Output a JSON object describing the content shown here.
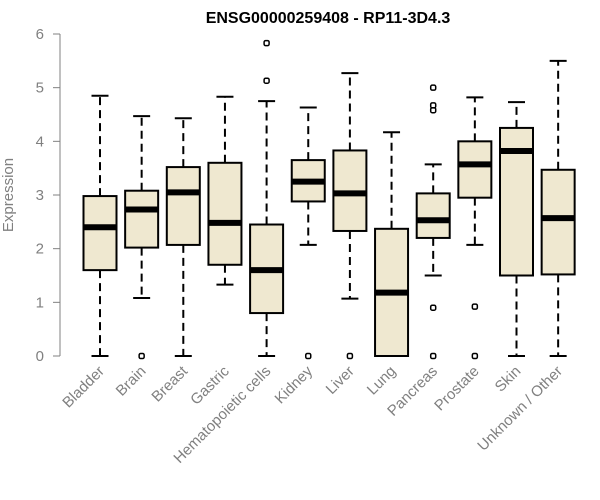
{
  "chart_data": {
    "type": "boxplot",
    "title": "ENSG00000259408 - RP11-3D4.3",
    "xlabel": "",
    "ylabel": "Expression",
    "ylim": [
      0,
      6
    ],
    "yticks": [
      0,
      1,
      2,
      3,
      4,
      5,
      6
    ],
    "box_fill": "#efe8d0",
    "categories": [
      "Bladder",
      "Brain",
      "Breast",
      "Gastric",
      "Hematopoietic cells",
      "Kidney",
      "Liver",
      "Lung",
      "Pancreas",
      "Prostate",
      "Skin",
      "Unknown / Other"
    ],
    "boxes": [
      {
        "label": "Bladder",
        "min": 0.0,
        "q1": 1.6,
        "median": 2.4,
        "q3": 2.98,
        "max": 4.85,
        "outliers": []
      },
      {
        "label": "Brain",
        "min": 1.08,
        "q1": 2.02,
        "median": 2.73,
        "q3": 3.08,
        "max": 4.47,
        "outliers": [
          0.0
        ]
      },
      {
        "label": "Breast",
        "min": 0.0,
        "q1": 2.07,
        "median": 3.05,
        "q3": 3.52,
        "max": 4.43,
        "outliers": []
      },
      {
        "label": "Gastric",
        "min": 1.33,
        "q1": 1.7,
        "median": 2.48,
        "q3": 3.6,
        "max": 4.83,
        "outliers": []
      },
      {
        "label": "Hematopoietic cells",
        "min": 0.0,
        "q1": 0.8,
        "median": 1.6,
        "q3": 2.45,
        "max": 4.75,
        "outliers": [
          5.13,
          5.83
        ]
      },
      {
        "label": "Kidney",
        "min": 2.07,
        "q1": 2.88,
        "median": 3.25,
        "q3": 3.65,
        "max": 4.63,
        "outliers": [
          0.0
        ]
      },
      {
        "label": "Liver",
        "min": 1.07,
        "q1": 2.33,
        "median": 3.03,
        "q3": 3.83,
        "max": 5.27,
        "outliers": [
          0.0
        ]
      },
      {
        "label": "Lung",
        "min": 0.0,
        "q1": 0.0,
        "median": 1.18,
        "q3": 2.37,
        "max": 4.17,
        "outliers": []
      },
      {
        "label": "Pancreas",
        "min": 1.5,
        "q1": 2.2,
        "median": 2.53,
        "q3": 3.03,
        "max": 3.57,
        "outliers": [
          0.0,
          0.9,
          4.58,
          4.67,
          5.0
        ]
      },
      {
        "label": "Prostate",
        "min": 2.07,
        "q1": 2.95,
        "median": 3.57,
        "q3": 4.0,
        "max": 4.82,
        "outliers": [
          0.0,
          0.92
        ]
      },
      {
        "label": "Skin",
        "min": 0.0,
        "q1": 1.5,
        "median": 3.82,
        "q3": 4.25,
        "max": 4.73,
        "outliers": []
      },
      {
        "label": "Unknown / Other",
        "min": 0.0,
        "q1": 1.52,
        "median": 2.57,
        "q3": 3.47,
        "max": 5.5,
        "outliers": []
      }
    ]
  }
}
